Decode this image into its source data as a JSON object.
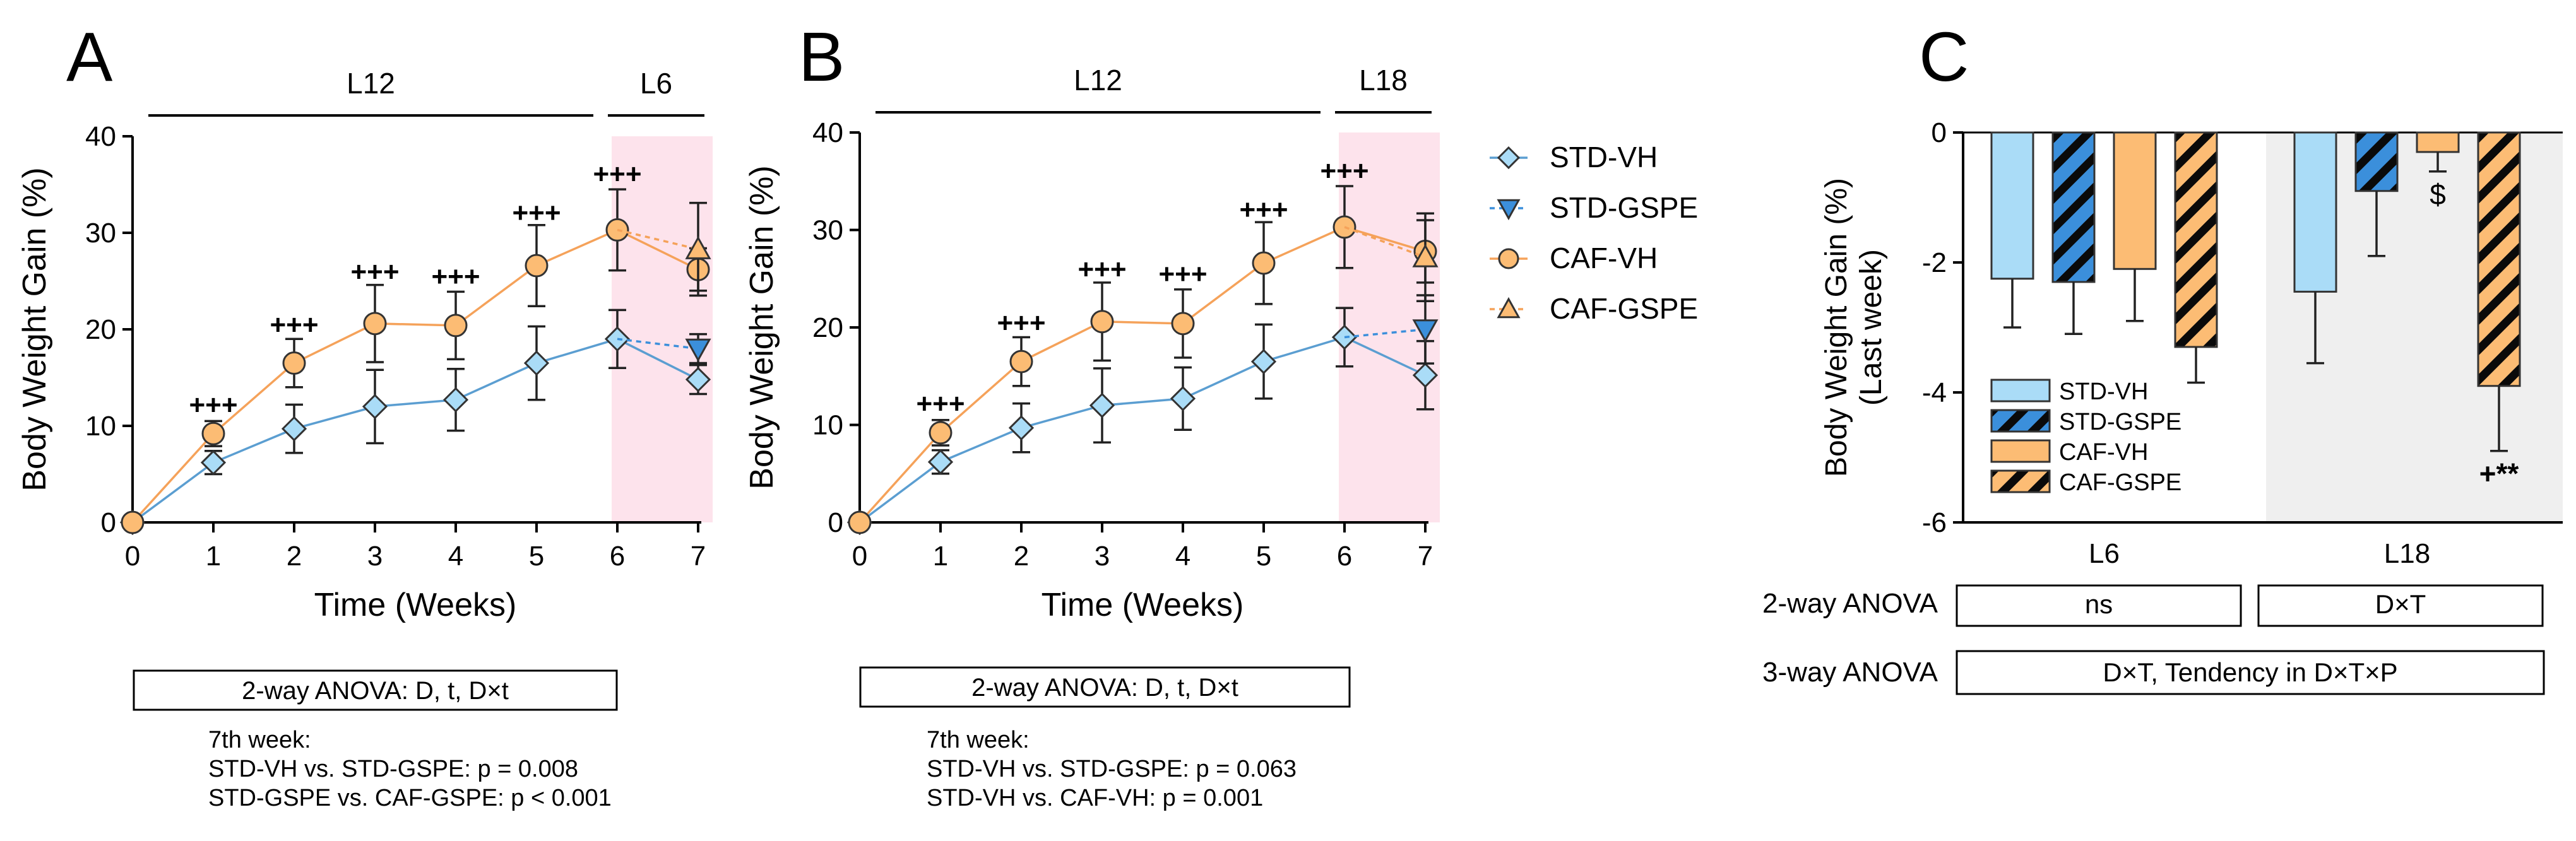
{
  "colors": {
    "std": "#aadcf7",
    "std_line": "#5b9ed1",
    "gspe_blue": "#3b8fdb",
    "caf": "#fcbc74",
    "caf_line": "#f5a25a",
    "shade_pink": "#fde3ec",
    "shade_grey": "#efefef"
  },
  "legend": [
    {
      "name": "STD-VH",
      "marker": "diamond"
    },
    {
      "name": "STD-GSPE",
      "marker": "triangle-down"
    },
    {
      "name": "CAF-VH",
      "marker": "circle"
    },
    {
      "name": "CAF-GSPE",
      "marker": "triangle-up"
    }
  ],
  "annotation_marks": {
    "plus": "+++"
  },
  "chart_data": [
    {
      "panel": "A",
      "type": "line",
      "ylabel": "Body Weight Gain (%)",
      "xlabel": "Time (Weeks)",
      "ylim": [
        0,
        40
      ],
      "yticks": [
        0,
        10,
        20,
        30,
        40
      ],
      "x": [
        0,
        1,
        2,
        3,
        4,
        5,
        6,
        7
      ],
      "phases": [
        {
          "label": "L12",
          "from": 0,
          "to": 6
        },
        {
          "label": "L6",
          "from": 6,
          "to": 7
        }
      ],
      "series": [
        {
          "name": "STD-VH",
          "x": [
            0,
            1,
            2,
            3,
            4,
            5,
            6,
            7
          ],
          "y": [
            0,
            6.2,
            9.7,
            12,
            12.7,
            16.5,
            19,
            14.8
          ],
          "err": [
            0,
            1.2,
            2.5,
            3.8,
            3.2,
            3.8,
            3,
            1.5
          ]
        },
        {
          "name": "STD-GSPE",
          "x": [
            6,
            7
          ],
          "y": [
            19,
            18
          ],
          "err": [
            0,
            1.5
          ]
        },
        {
          "name": "CAF-VH",
          "x": [
            0,
            1,
            2,
            3,
            4,
            5,
            6,
            7
          ],
          "y": [
            0,
            9.2,
            16.5,
            20.6,
            20.4,
            26.6,
            30.3,
            26.2
          ],
          "err": [
            0,
            1.3,
            2.5,
            4,
            3.5,
            4.2,
            4.2,
            2.2
          ]
        },
        {
          "name": "CAF-GSPE",
          "x": [
            6,
            7
          ],
          "y": [
            30.3,
            28.3
          ],
          "err": [
            0,
            4.8
          ]
        }
      ],
      "sig_marks": [
        {
          "x": 1,
          "y": 12,
          "label": "+++"
        },
        {
          "x": 2,
          "y": 20.3,
          "label": "+++"
        },
        {
          "x": 3,
          "y": 25.8,
          "label": "+++"
        },
        {
          "x": 4,
          "y": 25.3,
          "label": "+++"
        },
        {
          "x": 5,
          "y": 31.9,
          "label": "+++"
        },
        {
          "x": 6,
          "y": 35.9,
          "label": "+++"
        }
      ],
      "anova_box": "2-way ANOVA: D, t, D×t",
      "notes": [
        "7th week:",
        "STD-VH vs. STD-GSPE: p = 0.008",
        "STD-GSPE vs. CAF-GSPE: p < 0.001"
      ]
    },
    {
      "panel": "B",
      "type": "line",
      "ylabel": "Body Weight Gain (%)",
      "xlabel": "Time (Weeks)",
      "ylim": [
        0,
        40
      ],
      "yticks": [
        0,
        10,
        20,
        30,
        40
      ],
      "x": [
        0,
        1,
        2,
        3,
        4,
        5,
        6,
        7
      ],
      "phases": [
        {
          "label": "L12",
          "from": 0,
          "to": 6
        },
        {
          "label": "L18",
          "from": 6,
          "to": 7
        }
      ],
      "series": [
        {
          "name": "STD-VH",
          "x": [
            0,
            1,
            2,
            3,
            4,
            5,
            6,
            7
          ],
          "y": [
            0,
            6.2,
            9.7,
            12,
            12.7,
            16.5,
            19,
            15.1
          ],
          "err": [
            0,
            1.2,
            2.5,
            3.8,
            3.2,
            3.8,
            3,
            3.5
          ]
        },
        {
          "name": "STD-GSPE",
          "x": [
            6,
            7
          ],
          "y": [
            19,
            19.8
          ],
          "err": [
            0,
            3.5
          ]
        },
        {
          "name": "CAF-VH",
          "x": [
            0,
            1,
            2,
            3,
            4,
            5,
            6,
            7
          ],
          "y": [
            0,
            9.2,
            16.5,
            20.6,
            20.4,
            26.6,
            30.3,
            27.8
          ],
          "err": [
            0,
            1.3,
            2.5,
            4,
            3.5,
            4.2,
            4.2,
            3.2
          ]
        },
        {
          "name": "CAF-GSPE",
          "x": [
            6,
            7
          ],
          "y": [
            30.3,
            27.2
          ],
          "err": [
            0,
            4.5
          ]
        }
      ],
      "sig_marks": [
        {
          "x": 1,
          "y": 12,
          "label": "+++"
        },
        {
          "x": 2,
          "y": 20.3,
          "label": "+++"
        },
        {
          "x": 3,
          "y": 25.8,
          "label": "+++"
        },
        {
          "x": 4,
          "y": 25.3,
          "label": "+++"
        },
        {
          "x": 5,
          "y": 31.9,
          "label": "+++"
        },
        {
          "x": 6,
          "y": 35.9,
          "label": "+++"
        }
      ],
      "anova_box": "2-way ANOVA: D, t, D×t",
      "notes": [
        "7th week:",
        "STD-VH vs. STD-GSPE: p = 0.063",
        "STD-VH vs. CAF-VH: p = 0.001"
      ]
    },
    {
      "panel": "C",
      "type": "bar",
      "ylabel": "Body Weight Gain (%)",
      "ylabel2": "(Last week)",
      "ylim": [
        -6,
        0
      ],
      "yticks": [
        0,
        -2,
        -4,
        -6
      ],
      "categories": [
        "L6",
        "L18"
      ],
      "series": [
        {
          "name": "STD-VH",
          "values": [
            -2.25,
            -2.45
          ],
          "err": [
            0.75,
            1.1
          ],
          "hatch": false
        },
        {
          "name": "STD-GSPE",
          "values": [
            -2.3,
            -0.9
          ],
          "err": [
            0.8,
            1.0
          ],
          "hatch": true
        },
        {
          "name": "CAF-VH",
          "values": [
            -2.1,
            -0.3
          ],
          "err": [
            0.8,
            0.3
          ],
          "hatch": false
        },
        {
          "name": "CAF-GSPE",
          "values": [
            -3.3,
            -3.9
          ],
          "err": [
            0.55,
            1.0
          ],
          "hatch": true
        }
      ],
      "bar_marks": [
        {
          "category": "L18",
          "series": "CAF-VH",
          "label": "$"
        },
        {
          "category": "L18",
          "series": "CAF-GSPE",
          "label": "+**"
        }
      ],
      "anova_rows": [
        {
          "label": "2-way ANOVA",
          "cells": [
            "ns",
            "D×T"
          ]
        },
        {
          "label": "3-way ANOVA",
          "cells": [
            "D×T, Tendency in D×T×P"
          ]
        }
      ]
    }
  ]
}
